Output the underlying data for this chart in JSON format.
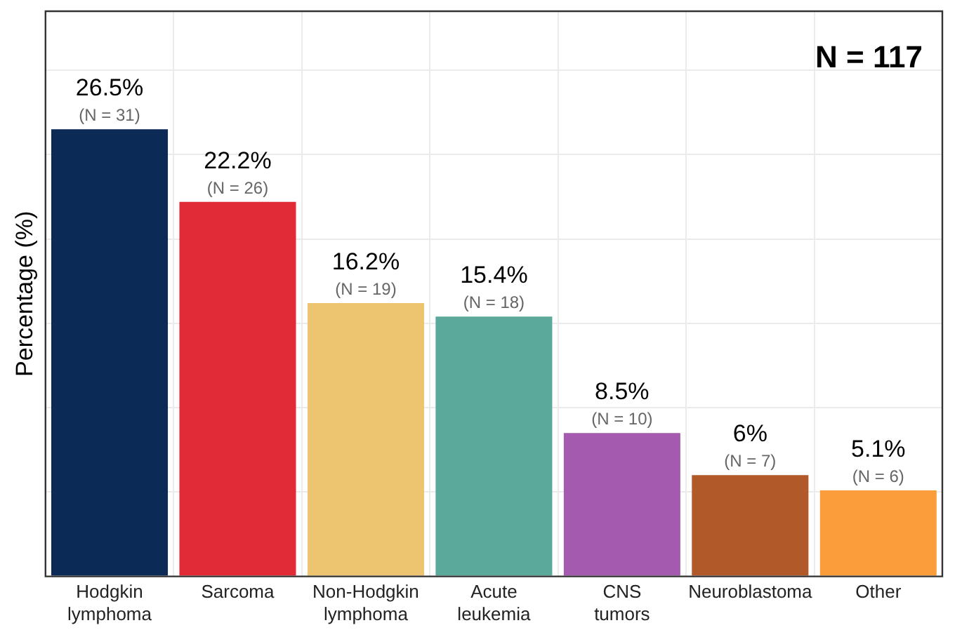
{
  "chart_data": {
    "type": "bar",
    "ylabel": "Percentage (%)",
    "categories": [
      "Hodgkin lymphoma",
      "Sarcoma",
      "Non-Hodgkin lymphoma",
      "Acute leukemia",
      "CNS tumors",
      "Neuroblastoma",
      "Other"
    ],
    "values": [
      26.5,
      22.2,
      16.2,
      15.4,
      8.5,
      6,
      5.1
    ],
    "colors": [
      "#0b2a55",
      "#e12b36",
      "#edc46f",
      "#5aa99a",
      "#a45aae",
      "#b2592a",
      "#fb9d3b"
    ],
    "value_labels": [
      "26.5%",
      "22.2%",
      "16.2%",
      "15.4%",
      "8.5%",
      "6%",
      "5.1%"
    ],
    "ylim": [
      0,
      33.5
    ],
    "tick_labels": "x",
    "grid": true,
    "legend": false,
    "annotations": [
      {
        "text": "(N = 31)",
        "x": "Hodgkin lymphoma",
        "y": 26.5
      },
      {
        "text": "(N = 26)",
        "x": "Sarcoma",
        "y": 22.2
      },
      {
        "text": "(N = 19)",
        "x": "Non-Hodgkin lymphoma",
        "y": 16.2
      },
      {
        "text": "(N = 18)",
        "x": "Acute leukemia",
        "y": 15.4
      },
      {
        "text": "(N = 10)",
        "x": "CNS tumors",
        "y": 8.5
      },
      {
        "text": "(N = 7)",
        "x": "Neuroblastoma",
        "y": 6
      },
      {
        "text": "(N = 6)",
        "x": "Other",
        "y": 5.1
      },
      "N = 117"
    ]
  }
}
